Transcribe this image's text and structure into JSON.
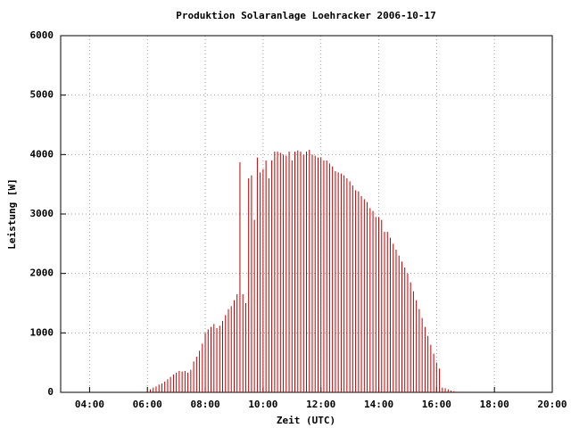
{
  "chart_data": {
    "type": "impulse",
    "title": "Produktion Solaranlage Loehracker 2006-10-17",
    "x_label": "Zeit (UTC)",
    "y_label": "Leistung [W]",
    "color": "#c00000",
    "grid": true,
    "xlim": [
      3,
      20
    ],
    "ylim": [
      0,
      6000
    ],
    "xticks": [
      {
        "value": 4,
        "label": "04:00"
      },
      {
        "value": 6,
        "label": "06:00"
      },
      {
        "value": 8,
        "label": "08:00"
      },
      {
        "value": 10,
        "label": "10:00"
      },
      {
        "value": 12,
        "label": "12:00"
      },
      {
        "value": 14,
        "label": "14:00"
      },
      {
        "value": 16,
        "label": "16:00"
      },
      {
        "value": 18,
        "label": "18:00"
      },
      {
        "value": 20,
        "label": "20:00"
      }
    ],
    "yticks": [
      0,
      1000,
      2000,
      3000,
      4000,
      5000,
      6000
    ],
    "x": [
      6.0,
      6.1,
      6.2,
      6.3,
      6.4,
      6.5,
      6.6,
      6.7,
      6.8,
      6.9,
      7.0,
      7.1,
      7.2,
      7.3,
      7.4,
      7.5,
      7.6,
      7.7,
      7.8,
      7.9,
      8.0,
      8.1,
      8.2,
      8.3,
      8.4,
      8.5,
      8.6,
      8.7,
      8.8,
      8.9,
      9.0,
      9.1,
      9.2,
      9.3,
      9.4,
      9.5,
      9.6,
      9.7,
      9.8,
      9.9,
      10.0,
      10.1,
      10.2,
      10.3,
      10.4,
      10.5,
      10.6,
      10.7,
      10.8,
      10.9,
      11.0,
      11.1,
      11.2,
      11.3,
      11.4,
      11.5,
      11.6,
      11.7,
      11.8,
      11.9,
      12.0,
      12.1,
      12.2,
      12.3,
      12.4,
      12.5,
      12.6,
      12.7,
      12.8,
      12.9,
      13.0,
      13.1,
      13.2,
      13.3,
      13.4,
      13.5,
      13.6,
      13.7,
      13.8,
      13.9,
      14.0,
      14.1,
      14.2,
      14.3,
      14.4,
      14.5,
      14.6,
      14.7,
      14.8,
      14.9,
      15.0,
      15.1,
      15.2,
      15.3,
      15.4,
      15.5,
      15.6,
      15.7,
      15.8,
      15.9,
      16.0,
      16.1,
      16.2,
      16.3,
      16.4,
      16.5,
      16.6,
      16.7
    ],
    "values": [
      30,
      50,
      80,
      100,
      130,
      150,
      180,
      220,
      260,
      300,
      330,
      360,
      350,
      360,
      330,
      380,
      520,
      600,
      700,
      820,
      1000,
      1060,
      1100,
      1150,
      1080,
      1120,
      1200,
      1300,
      1400,
      1450,
      1550,
      1650,
      3870,
      1650,
      1500,
      3600,
      3650,
      2900,
      3950,
      3700,
      3750,
      3900,
      3600,
      3900,
      4050,
      4050,
      4030,
      4000,
      3980,
      4050,
      3900,
      4050,
      4070,
      4050,
      4000,
      4050,
      4080,
      4000,
      3980,
      3950,
      3950,
      3900,
      3900,
      3850,
      3800,
      3720,
      3700,
      3680,
      3650,
      3600,
      3550,
      3480,
      3400,
      3380,
      3300,
      3250,
      3200,
      3100,
      3050,
      2950,
      2950,
      2900,
      2700,
      2700,
      2600,
      2500,
      2400,
      2300,
      2200,
      2100,
      2000,
      1850,
      1700,
      1550,
      1400,
      1250,
      1100,
      950,
      800,
      650,
      500,
      400,
      80,
      70,
      50,
      30,
      20,
      10
    ]
  }
}
